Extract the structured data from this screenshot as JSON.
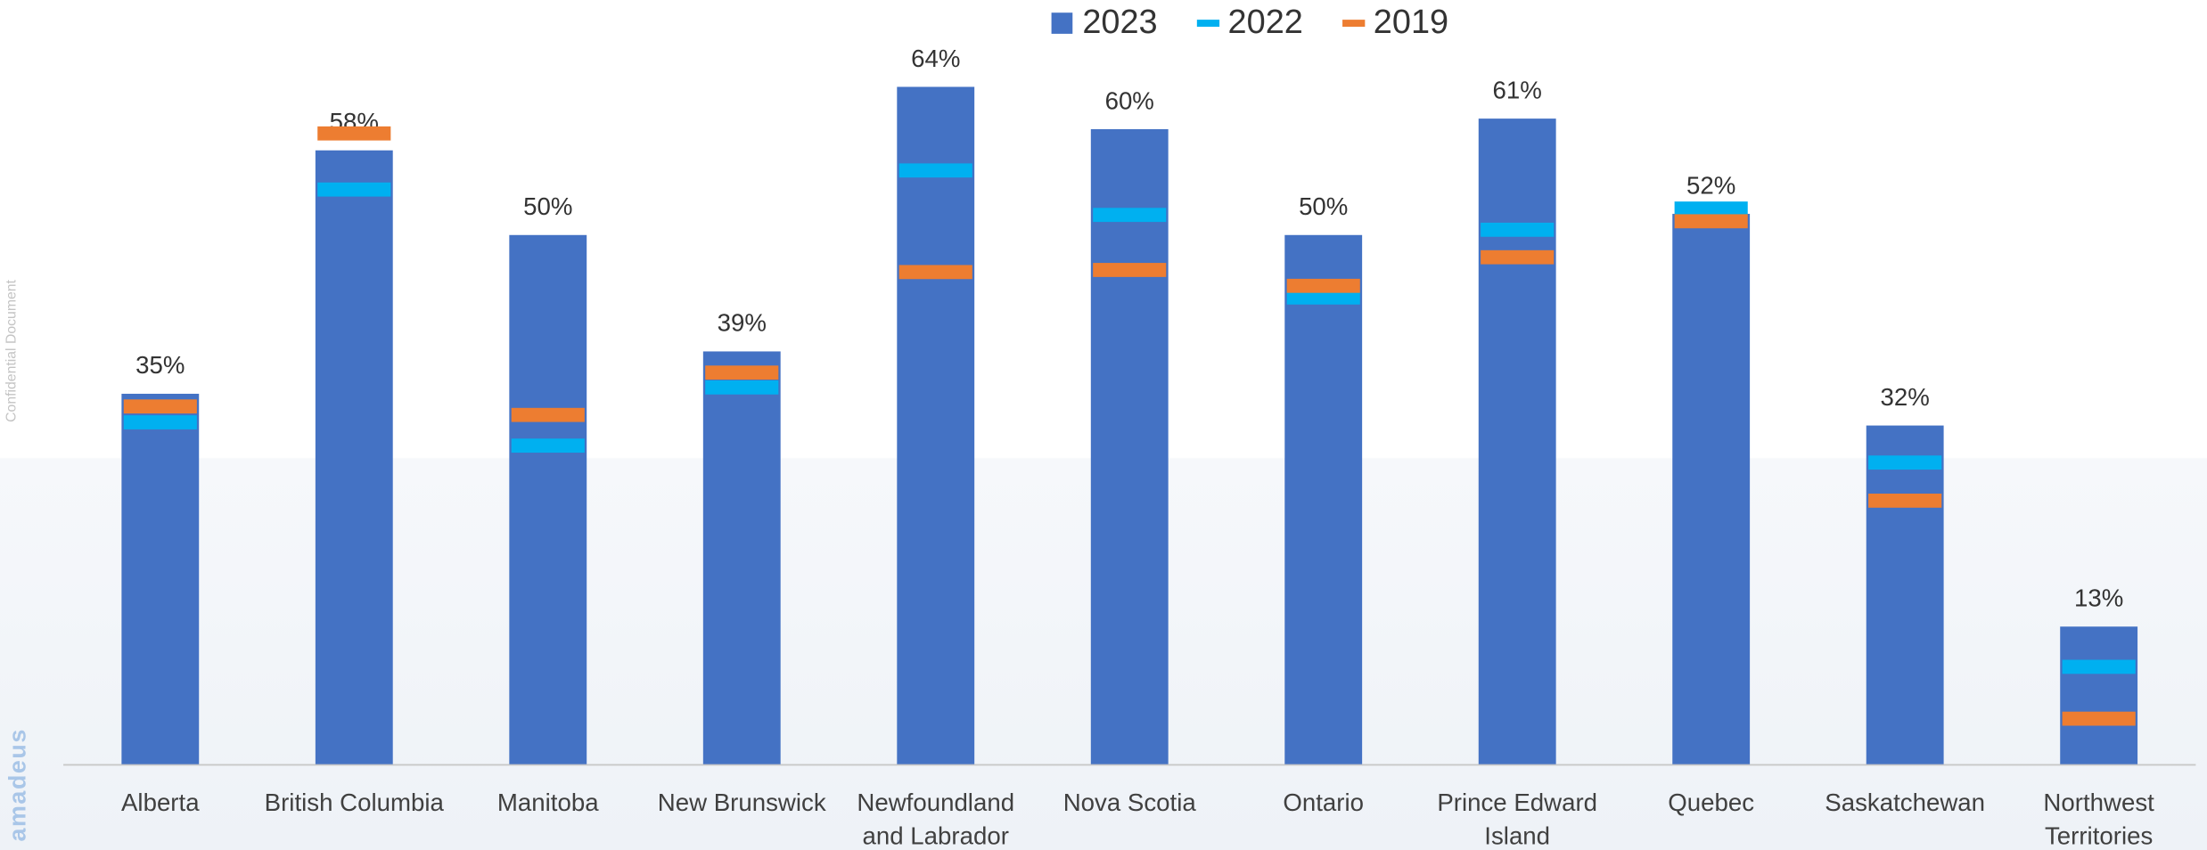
{
  "chart_data": {
    "type": "bar",
    "categories": [
      "Alberta",
      "British Columbia",
      "Manitoba",
      "New Brunswick",
      "Newfoundland and Labrador",
      "Nova Scotia",
      "Ontario",
      "Prince Edward Island",
      "Quebec",
      "Saskatchewan",
      "Northwest Territories"
    ],
    "series": [
      {
        "name": "2023",
        "color": "#4472c4",
        "kind": "bar",
        "values": [
          35,
          58,
          50,
          39,
          64,
          60,
          50,
          61,
          52,
          32,
          13
        ],
        "value_labels": [
          "35%",
          "58%",
          "50%",
          "39%",
          "64%",
          "60%",
          "50%",
          "61%",
          "52%",
          "32%",
          "13%"
        ]
      },
      {
        "name": "2022",
        "color": "#00b0f0",
        "kind": "marker",
        "values": [
          32.3,
          54.3,
          30.1,
          35.6,
          56.1,
          51.9,
          44.1,
          50.5,
          52.5,
          28.5,
          9.2
        ]
      },
      {
        "name": "2019",
        "color": "#ed7d31",
        "kind": "marker",
        "values": [
          33.8,
          59.6,
          33.0,
          37.0,
          46.5,
          46.7,
          45.2,
          47.9,
          51.3,
          24.9,
          4.3
        ]
      }
    ],
    "ylim": [
      0,
      70
    ],
    "legend": "top"
  },
  "watermark": "Confidential Document",
  "logo": "amadeus"
}
